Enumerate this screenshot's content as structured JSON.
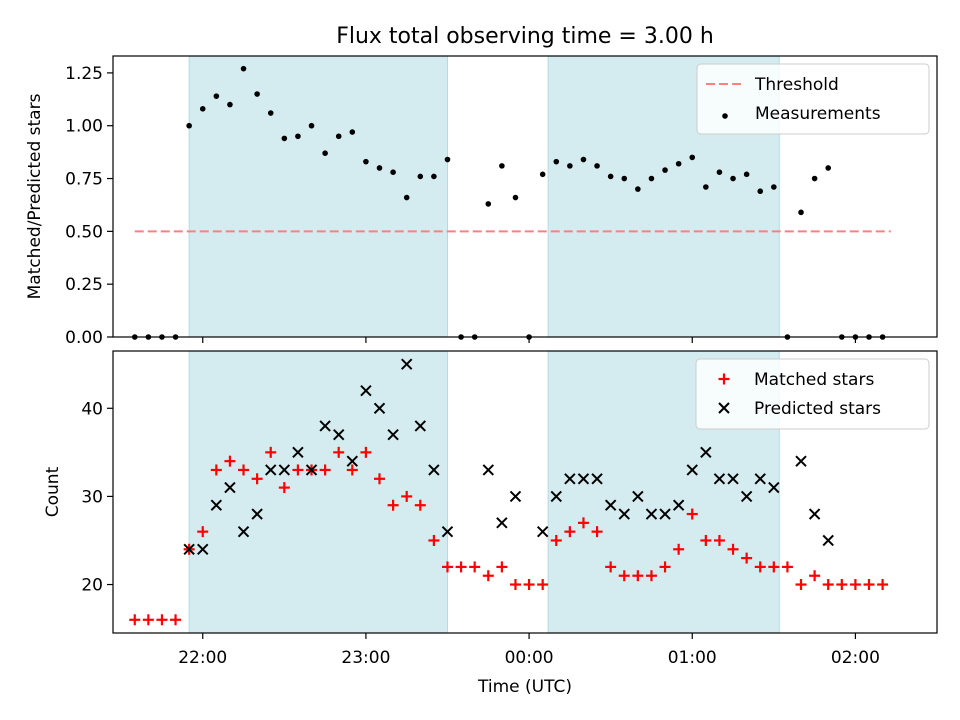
{
  "chart_data": [
    {
      "type": "scatter",
      "title": "Flux total observing time = 3.00 h",
      "ylabel": "Matched/Predicted stars",
      "xlabel": "",
      "ylim": [
        0,
        1.33
      ],
      "yticks": [
        0.0,
        0.25,
        0.5,
        0.75,
        1.0,
        1.25
      ],
      "ytick_labels": [
        "0.00",
        "0.25",
        "0.50",
        "0.75",
        "1.00",
        "1.25"
      ],
      "x_axis": "time",
      "xlim": [
        "21:27",
        "02:30"
      ],
      "xticks": [
        "22:00",
        "23:00",
        "00:00",
        "01:00",
        "02:00"
      ],
      "shaded_spans": [
        [
          "21:55",
          "23:30"
        ],
        [
          "00:07",
          "01:32"
        ]
      ],
      "shade_color": "#d4ebf0",
      "legend_position": "top-right",
      "threshold": {
        "name": "Threshold",
        "value": 0.5,
        "x_start": "21:35",
        "x_end": "02:13",
        "color": "#ff7f7f",
        "style": "dashed"
      },
      "series": [
        {
          "name": "Measurements",
          "marker": "dot",
          "color": "#000000",
          "x": [
            "21:35",
            "21:40",
            "21:45",
            "21:50",
            "21:55",
            "22:00",
            "22:05",
            "22:10",
            "22:15",
            "22:20",
            "22:25",
            "22:30",
            "22:35",
            "22:40",
            "22:45",
            "22:50",
            "22:55",
            "23:00",
            "23:05",
            "23:10",
            "23:15",
            "23:20",
            "23:25",
            "23:30",
            "23:35",
            "23:40",
            "23:45",
            "23:50",
            "23:55",
            "00:00",
            "00:05",
            "00:10",
            "00:15",
            "00:20",
            "00:25",
            "00:30",
            "00:35",
            "00:40",
            "00:45",
            "00:50",
            "00:55",
            "01:00",
            "01:05",
            "01:10",
            "01:15",
            "01:20",
            "01:25",
            "01:30",
            "01:35",
            "01:40",
            "01:45",
            "01:50",
            "01:55",
            "02:00",
            "02:05",
            "02:10"
          ],
          "y": [
            0,
            0,
            0,
            0,
            1.0,
            1.08,
            1.14,
            1.1,
            1.27,
            1.15,
            1.06,
            0.94,
            0.95,
            1.0,
            0.87,
            0.95,
            0.97,
            0.83,
            0.8,
            0.78,
            0.66,
            0.76,
            0.76,
            0.84,
            0,
            0,
            0.63,
            0.81,
            0.66,
            0,
            0.77,
            0.83,
            0.81,
            0.84,
            0.81,
            0.76,
            0.75,
            0.7,
            0.75,
            0.79,
            0.82,
            0.85,
            0.71,
            0.78,
            0.75,
            0.77,
            0.69,
            0.71,
            0,
            0.59,
            0.75,
            0.8,
            0,
            0,
            0,
            0
          ]
        }
      ]
    },
    {
      "type": "scatter",
      "title": "",
      "ylabel": "Count",
      "xlabel": "Time (UTC)",
      "ylim": [
        14.5,
        46.5
      ],
      "yticks": [
        20,
        30,
        40
      ],
      "ytick_labels": [
        "20",
        "30",
        "40"
      ],
      "x_axis": "time",
      "xlim": [
        "21:27",
        "02:30"
      ],
      "xticks": [
        "22:00",
        "23:00",
        "00:00",
        "01:00",
        "02:00"
      ],
      "xtick_labels": [
        "22:00",
        "23:00",
        "00:00",
        "01:00",
        "02:00"
      ],
      "shaded_spans": [
        [
          "21:55",
          "23:30"
        ],
        [
          "00:07",
          "01:32"
        ]
      ],
      "shade_color": "#d4ebf0",
      "legend_position": "top-right",
      "series": [
        {
          "name": "Matched stars",
          "marker": "plus",
          "color": "#ff0000",
          "x": [
            "21:35",
            "21:40",
            "21:45",
            "21:50",
            "21:55",
            "22:00",
            "22:05",
            "22:10",
            "22:15",
            "22:20",
            "22:25",
            "22:30",
            "22:35",
            "22:40",
            "22:45",
            "22:50",
            "22:55",
            "23:00",
            "23:05",
            "23:10",
            "23:15",
            "23:20",
            "23:25",
            "23:30",
            "23:35",
            "23:40",
            "23:45",
            "23:50",
            "23:55",
            "00:00",
            "00:05",
            "00:10",
            "00:15",
            "00:20",
            "00:25",
            "00:30",
            "00:35",
            "00:40",
            "00:45",
            "00:50",
            "00:55",
            "01:00",
            "01:05",
            "01:10",
            "01:15",
            "01:20",
            "01:25",
            "01:30",
            "01:35",
            "01:40",
            "01:45",
            "01:50",
            "01:55",
            "02:00",
            "02:05",
            "02:10"
          ],
          "y": [
            16,
            16,
            16,
            16,
            24,
            26,
            33,
            34,
            33,
            32,
            35,
            31,
            33,
            33,
            33,
            35,
            33,
            35,
            32,
            29,
            30,
            29,
            25,
            22,
            22,
            22,
            21,
            22,
            20,
            20,
            20,
            25,
            26,
            27,
            26,
            22,
            21,
            21,
            21,
            22,
            24,
            28,
            25,
            25,
            24,
            23,
            22,
            22,
            22,
            20,
            21,
            20,
            20,
            20,
            20,
            20
          ]
        },
        {
          "name": "Predicted stars",
          "marker": "x",
          "color": "#000000",
          "x": [
            "21:55",
            "22:00",
            "22:05",
            "22:10",
            "22:15",
            "22:20",
            "22:25",
            "22:30",
            "22:35",
            "22:40",
            "22:45",
            "22:50",
            "22:55",
            "23:00",
            "23:05",
            "23:10",
            "23:15",
            "23:20",
            "23:25",
            "23:30",
            "23:45",
            "23:50",
            "23:55",
            "00:05",
            "00:10",
            "00:15",
            "00:20",
            "00:25",
            "00:30",
            "00:35",
            "00:40",
            "00:45",
            "00:50",
            "00:55",
            "01:00",
            "01:05",
            "01:10",
            "01:15",
            "01:20",
            "01:25",
            "01:30",
            "01:40",
            "01:45",
            "01:50"
          ],
          "y": [
            24,
            24,
            29,
            31,
            26,
            28,
            33,
            33,
            35,
            33,
            38,
            37,
            34,
            42,
            40,
            37,
            45,
            38,
            33,
            26,
            33,
            27,
            30,
            26,
            30,
            32,
            32,
            32,
            29,
            28,
            30,
            28,
            28,
            29,
            33,
            35,
            32,
            32,
            30,
            32,
            31,
            34,
            28,
            25
          ]
        }
      ]
    }
  ]
}
